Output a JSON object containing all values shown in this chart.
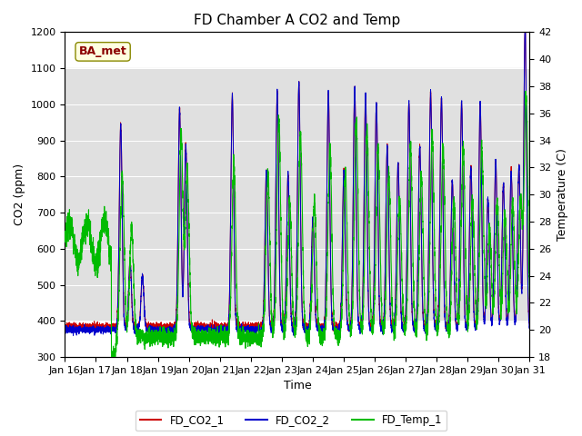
{
  "title": "FD Chamber A CO2 and Temp",
  "xlabel": "Time",
  "ylabel_left": "CO2 (ppm)",
  "ylabel_right": "Temperature (C)",
  "ylim_left": [
    300,
    1200
  ],
  "ylim_right": [
    18,
    42
  ],
  "yticks_left": [
    300,
    400,
    500,
    600,
    700,
    800,
    900,
    1000,
    1100,
    1200
  ],
  "yticks_right": [
    18,
    20,
    22,
    24,
    26,
    28,
    30,
    32,
    34,
    36,
    38,
    40,
    42
  ],
  "xtick_labels": [
    "Jan 16",
    "Jan 17",
    "Jan 18",
    "Jan 19",
    "Jan 20",
    "Jan 21",
    "Jan 22",
    "Jan 23",
    "Jan 24",
    "Jan 25",
    "Jan 26",
    "Jan 27",
    "Jan 28",
    "Jan 29",
    "Jan 30",
    "Jan 31"
  ],
  "color_co2_1": "#cc0000",
  "color_co2_2": "#0000cc",
  "color_temp": "#00bb00",
  "legend_labels": [
    "FD_CO2_1",
    "FD_CO2_2",
    "FD_Temp_1"
  ],
  "annotation_text": "BA_met",
  "annotation_color": "#8b0000",
  "bg_band_low": 400,
  "bg_band_high": 1100,
  "title_fontsize": 11,
  "axis_fontsize": 9,
  "tick_fontsize": 8,
  "figwidth": 6.4,
  "figheight": 4.8,
  "dpi": 100,
  "co2_spike_times": [
    1.8,
    2.1,
    2.5,
    3.7,
    3.9,
    5.4,
    6.5,
    6.85,
    7.2,
    7.55,
    8.0,
    8.5,
    9.0,
    9.35,
    9.7,
    10.05,
    10.4,
    10.75,
    11.1,
    11.45,
    11.8,
    12.15,
    12.5,
    12.8,
    13.1,
    13.4,
    13.65,
    13.9,
    14.15,
    14.4,
    14.65,
    14.85
  ],
  "co2_spike_h1": [
    560,
    180,
    140,
    600,
    500,
    640,
    430,
    650,
    420,
    670,
    300,
    650,
    430,
    660,
    640,
    620,
    500,
    450,
    620,
    500,
    650,
    630,
    400,
    620,
    440,
    620,
    350,
    460,
    390,
    430,
    440,
    840
  ],
  "co2_spike_h2": [
    570,
    190,
    150,
    610,
    510,
    650,
    440,
    660,
    430,
    680,
    310,
    660,
    440,
    670,
    650,
    630,
    510,
    460,
    630,
    510,
    660,
    640,
    410,
    630,
    450,
    630,
    360,
    470,
    400,
    440,
    450,
    850
  ],
  "temp_spike_times": [
    1.85,
    2.15,
    3.75,
    3.95,
    5.45,
    6.55,
    6.9,
    7.25,
    7.6,
    8.05,
    8.55,
    9.05,
    9.4,
    9.75,
    10.1,
    10.45,
    10.8,
    11.15,
    11.5,
    11.85,
    12.2,
    12.55,
    12.85,
    13.15,
    13.45,
    13.7,
    13.95,
    14.2,
    14.45,
    14.7,
    14.88
  ],
  "temp_spike_heights": [
    12,
    8,
    15,
    12,
    13,
    12,
    16,
    10,
    15,
    10,
    14,
    12,
    16,
    15,
    14,
    12,
    10,
    14,
    12,
    15,
    14,
    10,
    14,
    10,
    14,
    8,
    10,
    9,
    10,
    10,
    18
  ]
}
